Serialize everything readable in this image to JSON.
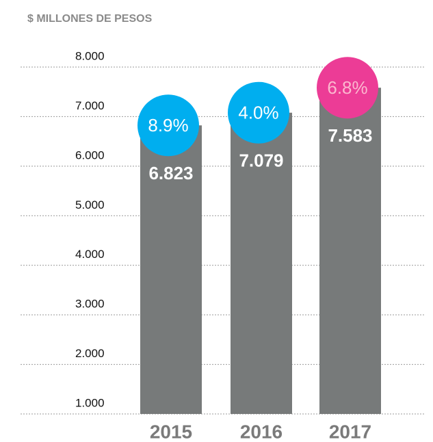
{
  "chart_data": {
    "type": "bar",
    "title": "$ MILLONES DE PESOS",
    "categories": [
      "2015",
      "2016",
      "2017"
    ],
    "values": [
      6823,
      7079,
      7583
    ],
    "value_labels": [
      "6.823",
      "7.079",
      "7.583"
    ],
    "color": "#777a7a",
    "growth": {
      "values": [
        8.9,
        4.0,
        6.8
      ],
      "labels": [
        "8.9%",
        "4.0%",
        "6.8%"
      ],
      "colors": [
        "#00aeef",
        "#00aeef",
        "#ec3c96"
      ],
      "text_colors": [
        "#ffffff",
        "#ffffff",
        "#fbb8cf"
      ]
    },
    "ylim": [
      1000,
      8000
    ],
    "yticks": [
      {
        "value": 1000,
        "label": "1.000"
      },
      {
        "value": 2000,
        "label": "2.000"
      },
      {
        "value": 3000,
        "label": "3.000"
      },
      {
        "value": 4000,
        "label": "4.000"
      },
      {
        "value": 5000,
        "label": "5.000"
      },
      {
        "value": 6000,
        "label": "6.000"
      },
      {
        "value": 7000,
        "label": "7.000"
      },
      {
        "value": 8000,
        "label": "8.000"
      }
    ],
    "grid": true
  }
}
